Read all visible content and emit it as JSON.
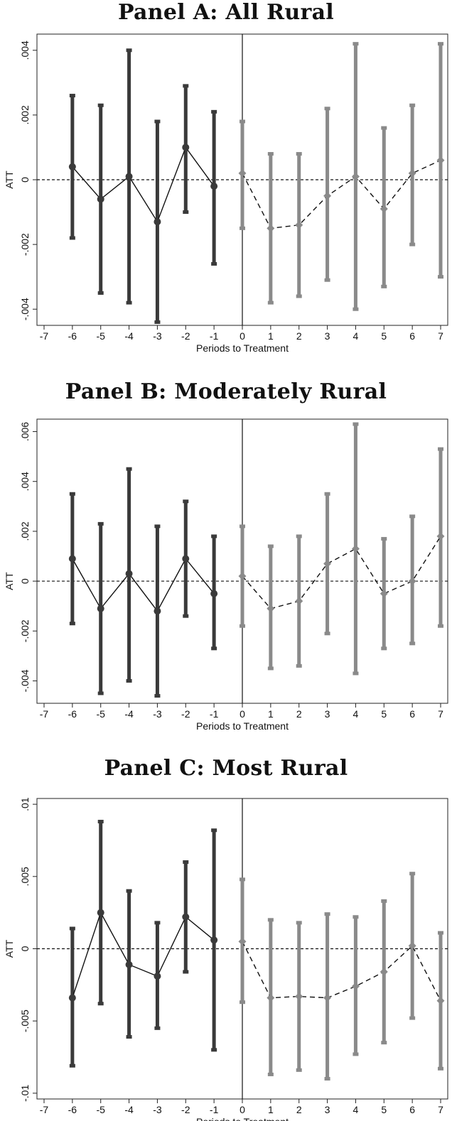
{
  "chart_data": [
    {
      "type": "scatter",
      "title": "Panel A: All Rural",
      "xlabel": "Periods to Treatment",
      "ylabel": "ATT",
      "xlim": [
        -7,
        7
      ],
      "ylim": [
        -0.0045,
        0.0045
      ],
      "xticks": [
        "-7",
        "-6",
        "-5",
        "-4",
        "-3",
        "-2",
        "-1",
        "0",
        "1",
        "2",
        "3",
        "4",
        "5",
        "6",
        "7"
      ],
      "yticks": [
        {
          "v": -0.004,
          "label": "-.004"
        },
        {
          "v": -0.002,
          "label": "-.002"
        },
        {
          "v": 0,
          "label": "0"
        },
        {
          "v": 0.002,
          "label": ".002"
        },
        {
          "v": 0.004,
          "label": ".004"
        }
      ],
      "vline_x": 0,
      "hline_y": 0,
      "series": [
        {
          "x": [
            -6,
            -5,
            -4,
            -3,
            -2,
            -1
          ],
          "y": [
            0.0004,
            -0.0006,
            0.0001,
            -0.0013,
            0.001,
            -0.0002
          ],
          "lo": [
            -0.0018,
            -0.0035,
            -0.0038,
            -0.0044,
            -0.001,
            -0.0026
          ],
          "hi": [
            0.0026,
            0.0023,
            0.004,
            0.0018,
            0.0029,
            0.0021
          ],
          "color": "#3a3a3a",
          "line": "solid"
        },
        {
          "x": [
            0,
            1,
            2,
            3,
            4,
            5,
            6,
            7
          ],
          "y": [
            0.0002,
            -0.0015,
            -0.0014,
            -0.0005,
            0.0001,
            -0.0009,
            0.0002,
            0.0006
          ],
          "lo": [
            -0.0015,
            -0.0038,
            -0.0036,
            -0.0031,
            -0.004,
            -0.0033,
            -0.002,
            -0.003
          ],
          "hi": [
            0.0018,
            0.0008,
            0.0008,
            0.0022,
            0.0042,
            0.0016,
            0.0023,
            0.0042
          ],
          "color": "#8a8a8a",
          "line": "dashed"
        }
      ]
    },
    {
      "type": "scatter",
      "title": "Panel B: Moderately Rural",
      "xlabel": "Periods to Treatment",
      "ylabel": "ATT",
      "xlim": [
        -7,
        7
      ],
      "ylim": [
        -0.0049,
        0.0065
      ],
      "xticks": [
        "-7",
        "-6",
        "-5",
        "-4",
        "-3",
        "-2",
        "-1",
        "0",
        "1",
        "2",
        "3",
        "4",
        "5",
        "6",
        "7"
      ],
      "yticks": [
        {
          "v": -0.004,
          "label": "-.004"
        },
        {
          "v": -0.002,
          "label": "-.002"
        },
        {
          "v": 0,
          "label": "0"
        },
        {
          "v": 0.002,
          "label": ".002"
        },
        {
          "v": 0.004,
          "label": ".004"
        },
        {
          "v": 0.006,
          "label": ".006"
        }
      ],
      "vline_x": 0,
      "hline_y": 0,
      "series": [
        {
          "x": [
            -6,
            -5,
            -4,
            -3,
            -2,
            -1
          ],
          "y": [
            0.0009,
            -0.0011,
            0.0003,
            -0.0012,
            0.0009,
            -0.0005
          ],
          "lo": [
            -0.0017,
            -0.0045,
            -0.004,
            -0.0046,
            -0.0014,
            -0.0027
          ],
          "hi": [
            0.0035,
            0.0023,
            0.0045,
            0.0022,
            0.0032,
            0.0018
          ],
          "color": "#3a3a3a",
          "line": "solid"
        },
        {
          "x": [
            0,
            1,
            2,
            3,
            4,
            5,
            6,
            7
          ],
          "y": [
            0.0002,
            -0.0011,
            -0.0008,
            0.0007,
            0.0013,
            -0.0005,
            0.0,
            0.0018
          ],
          "lo": [
            -0.0018,
            -0.0035,
            -0.0034,
            -0.0021,
            -0.0037,
            -0.0027,
            -0.0025,
            -0.0018
          ],
          "hi": [
            0.0022,
            0.0014,
            0.0018,
            0.0035,
            0.0063,
            0.0017,
            0.0026,
            0.0053
          ],
          "color": "#8a8a8a",
          "line": "dashed"
        }
      ]
    },
    {
      "type": "scatter",
      "title": "Panel C: Most Rural",
      "xlabel": "Periods to Treatment",
      "ylabel": "ATT",
      "xlim": [
        -7,
        7
      ],
      "ylim": [
        -0.0104,
        0.0104
      ],
      "xticks": [
        "-7",
        "-6",
        "-5",
        "-4",
        "-3",
        "-2",
        "-1",
        "0",
        "1",
        "2",
        "3",
        "4",
        "5",
        "6",
        "7"
      ],
      "yticks": [
        {
          "v": -0.01,
          "label": "-.01"
        },
        {
          "v": -0.005,
          "label": "-.005"
        },
        {
          "v": 0,
          "label": "0"
        },
        {
          "v": 0.005,
          "label": ".005"
        },
        {
          "v": 0.01,
          "label": ".01"
        }
      ],
      "vline_x": 0,
      "hline_y": 0,
      "series": [
        {
          "x": [
            -6,
            -5,
            -4,
            -3,
            -2,
            -1
          ],
          "y": [
            -0.0034,
            0.0025,
            -0.0011,
            -0.0019,
            0.0022,
            0.0006
          ],
          "lo": [
            -0.0081,
            -0.0038,
            -0.0061,
            -0.0055,
            -0.0016,
            -0.007
          ],
          "hi": [
            0.0014,
            0.0088,
            0.004,
            0.0018,
            0.006,
            0.0082
          ],
          "color": "#3a3a3a",
          "line": "solid"
        },
        {
          "x": [
            0,
            1,
            2,
            3,
            4,
            5,
            6,
            7
          ],
          "y": [
            0.0005,
            -0.0034,
            -0.0033,
            -0.0034,
            -0.0026,
            -0.0016,
            0.0002,
            -0.0036
          ],
          "lo": [
            -0.0037,
            -0.0087,
            -0.0084,
            -0.009,
            -0.0073,
            -0.0065,
            -0.0048,
            -0.0083
          ],
          "hi": [
            0.0048,
            0.002,
            0.0018,
            0.0024,
            0.0022,
            0.0033,
            0.0052,
            0.0011
          ],
          "color": "#8a8a8a",
          "line": "dashed"
        }
      ]
    }
  ]
}
